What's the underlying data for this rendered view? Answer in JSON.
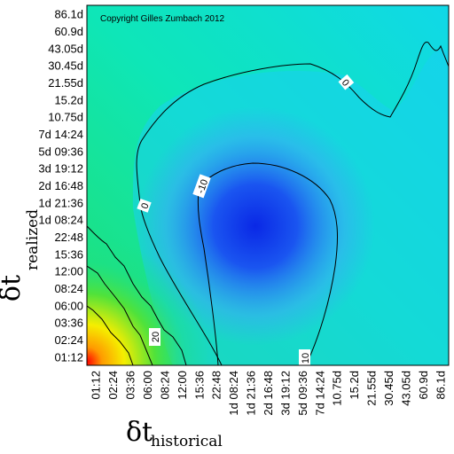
{
  "copyright": "Copyright Gilles Zumbach 2012",
  "chart_data": {
    "type": "heatmap",
    "title": "",
    "xlabel": {
      "symbol": "δt",
      "subscript": "historical"
    },
    "ylabel": {
      "symbol": "δt",
      "subscript": "realized"
    },
    "x_ticks": [
      "01:12",
      "02:24",
      "03:36",
      "06:00",
      "08:24",
      "12:00",
      "15:36",
      "22:48",
      "1d 08:24",
      "1d 21:36",
      "2d 16:48",
      "3d 19:12",
      "5d 09:36",
      "7d 14:24",
      "10.75d",
      "15.2d",
      "21.55d",
      "30.45d",
      "43.05d",
      "60.9d",
      "86.1d"
    ],
    "y_ticks": [
      "01:12",
      "02:24",
      "03:36",
      "06:00",
      "08:24",
      "12:00",
      "15:36",
      "22:48",
      "1d 08:24",
      "1d 21:36",
      "2d 16:48",
      "3d 19:12",
      "5d 09:36",
      "7d 14:24",
      "10.75d",
      "15.2d",
      "21.55d",
      "30.45d",
      "43.05d",
      "60.9d",
      "86.1d"
    ],
    "contour_levels": [
      {
        "value": -10,
        "label": "-10"
      },
      {
        "value": 0,
        "label": "0"
      },
      {
        "value": 10,
        "label": "10"
      },
      {
        "value": 20,
        "label": "20"
      }
    ],
    "color_scale": [
      "#0000ff",
      "#00c8ff",
      "#00ff99",
      "#ffff00",
      "#ff0000"
    ]
  }
}
